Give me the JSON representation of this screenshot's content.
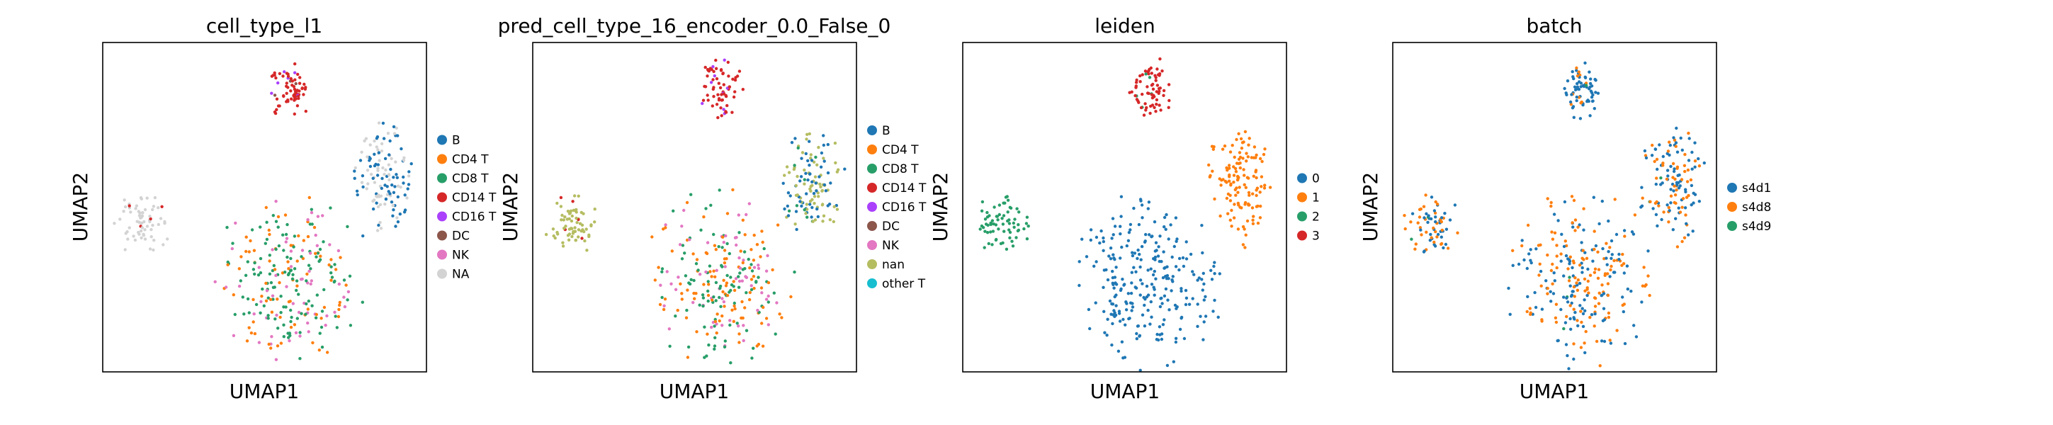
{
  "figure": {
    "panels": [
      {
        "title": "cell_type_l1",
        "xlabel": "UMAP1",
        "ylabel": "UMAP2",
        "legend": [
          {
            "label": "B",
            "color": "#1f77b4"
          },
          {
            "label": "CD4 T",
            "color": "#ff7f0e"
          },
          {
            "label": "CD8 T",
            "color": "#279e68"
          },
          {
            "label": "CD14 T",
            "color": "#d62728"
          },
          {
            "label": "CD16 T",
            "color": "#aa40fc"
          },
          {
            "label": "DC",
            "color": "#8c564b"
          },
          {
            "label": "NK",
            "color": "#e377c2"
          },
          {
            "label": "NA",
            "color": "#d3d3d3"
          }
        ]
      },
      {
        "title": "pred_cell_type_16_encoder_0.0_False_0",
        "xlabel": "UMAP1",
        "ylabel": "UMAP2",
        "legend": [
          {
            "label": "B",
            "color": "#1f77b4"
          },
          {
            "label": "CD4 T",
            "color": "#ff7f0e"
          },
          {
            "label": "CD8 T",
            "color": "#279e68"
          },
          {
            "label": "CD14 T",
            "color": "#d62728"
          },
          {
            "label": "CD16 T",
            "color": "#aa40fc"
          },
          {
            "label": "DC",
            "color": "#8c564b"
          },
          {
            "label": "NK",
            "color": "#e377c2"
          },
          {
            "label": "nan",
            "color": "#b5bd61"
          },
          {
            "label": "other T",
            "color": "#17becf"
          }
        ]
      },
      {
        "title": "leiden",
        "xlabel": "UMAP1",
        "ylabel": "UMAP2",
        "legend": [
          {
            "label": "0",
            "color": "#1f77b4"
          },
          {
            "label": "1",
            "color": "#ff7f0e"
          },
          {
            "label": "2",
            "color": "#279e68"
          },
          {
            "label": "3",
            "color": "#d62728"
          }
        ]
      },
      {
        "title": "batch",
        "xlabel": "UMAP1",
        "ylabel": "UMAP2",
        "legend": [
          {
            "label": "s4d1",
            "color": "#1f77b4"
          },
          {
            "label": "s4d8",
            "color": "#ff7f0e"
          },
          {
            "label": "s4d9",
            "color": "#279e68"
          }
        ]
      }
    ]
  },
  "chart_data": [
    {
      "type": "scatter",
      "title": "cell_type_l1",
      "xlabel": "UMAP1",
      "ylabel": "UMAP2",
      "grid": false,
      "ticks": false,
      "legend_position": "right-outside",
      "clusters": [
        {
          "region": "bottom-center",
          "cx": 0.58,
          "cy": 0.28,
          "rx": 0.24,
          "ry": 0.28,
          "mix": [
            {
              "label": "CD8 T",
              "w": 0.45
            },
            {
              "label": "CD4 T",
              "w": 0.33
            },
            {
              "label": "NK",
              "w": 0.22
            }
          ]
        },
        {
          "region": "right",
          "cx": 0.86,
          "cy": 0.57,
          "rx": 0.11,
          "ry": 0.2,
          "mix": [
            {
              "label": "B",
              "w": 0.5
            },
            {
              "label": "NA",
              "w": 0.5
            }
          ]
        },
        {
          "region": "top",
          "cx": 0.58,
          "cy": 0.86,
          "rx": 0.07,
          "ry": 0.1,
          "mix": [
            {
              "label": "CD14 T",
              "w": 0.85
            },
            {
              "label": "CD16 T",
              "w": 0.1
            },
            {
              "label": "DC",
              "w": 0.05
            }
          ]
        },
        {
          "region": "left",
          "cx": 0.12,
          "cy": 0.45,
          "rx": 0.09,
          "ry": 0.1,
          "mix": [
            {
              "label": "NA",
              "w": 0.95
            },
            {
              "label": "CD14 T",
              "w": 0.05
            }
          ]
        }
      ]
    },
    {
      "type": "scatter",
      "title": "pred_cell_type_16_encoder_0.0_False_0",
      "xlabel": "UMAP1",
      "ylabel": "UMAP2",
      "grid": false,
      "ticks": false,
      "legend_position": "right-outside",
      "clusters": [
        {
          "region": "bottom-center",
          "cx": 0.58,
          "cy": 0.28,
          "rx": 0.24,
          "ry": 0.28,
          "mix": [
            {
              "label": "CD8 T",
              "w": 0.4
            },
            {
              "label": "CD4 T",
              "w": 0.35
            },
            {
              "label": "NK",
              "w": 0.25
            }
          ]
        },
        {
          "region": "right",
          "cx": 0.86,
          "cy": 0.57,
          "rx": 0.11,
          "ry": 0.2,
          "mix": [
            {
              "label": "nan",
              "w": 0.55
            },
            {
              "label": "B",
              "w": 0.4
            },
            {
              "label": "CD8 T",
              "w": 0.05
            }
          ]
        },
        {
          "region": "top",
          "cx": 0.58,
          "cy": 0.86,
          "rx": 0.07,
          "ry": 0.1,
          "mix": [
            {
              "label": "CD14 T",
              "w": 0.88
            },
            {
              "label": "CD16 T",
              "w": 0.12
            }
          ]
        },
        {
          "region": "left",
          "cx": 0.12,
          "cy": 0.45,
          "rx": 0.09,
          "ry": 0.1,
          "mix": [
            {
              "label": "nan",
              "w": 0.93
            },
            {
              "label": "CD14 T",
              "w": 0.07
            }
          ]
        }
      ]
    },
    {
      "type": "scatter",
      "title": "leiden",
      "xlabel": "UMAP1",
      "ylabel": "UMAP2",
      "grid": false,
      "ticks": false,
      "legend_position": "right-outside",
      "clusters": [
        {
          "region": "bottom-center",
          "cx": 0.58,
          "cy": 0.28,
          "rx": 0.24,
          "ry": 0.28,
          "mix": [
            {
              "label": "0",
              "w": 1.0
            }
          ]
        },
        {
          "region": "right",
          "cx": 0.86,
          "cy": 0.57,
          "rx": 0.11,
          "ry": 0.2,
          "mix": [
            {
              "label": "1",
              "w": 1.0
            }
          ]
        },
        {
          "region": "top",
          "cx": 0.58,
          "cy": 0.86,
          "rx": 0.07,
          "ry": 0.1,
          "mix": [
            {
              "label": "3",
              "w": 0.92
            },
            {
              "label": "2",
              "w": 0.08
            }
          ]
        },
        {
          "region": "left",
          "cx": 0.12,
          "cy": 0.45,
          "rx": 0.09,
          "ry": 0.1,
          "mix": [
            {
              "label": "2",
              "w": 1.0
            }
          ]
        }
      ]
    },
    {
      "type": "scatter",
      "title": "batch",
      "xlabel": "UMAP1",
      "ylabel": "UMAP2",
      "grid": false,
      "ticks": false,
      "legend_position": "right-outside",
      "clusters": [
        {
          "region": "bottom-center",
          "cx": 0.58,
          "cy": 0.28,
          "rx": 0.24,
          "ry": 0.28,
          "mix": [
            {
              "label": "s4d1",
              "w": 0.52
            },
            {
              "label": "s4d8",
              "w": 0.46
            },
            {
              "label": "s4d9",
              "w": 0.02
            }
          ]
        },
        {
          "region": "right",
          "cx": 0.86,
          "cy": 0.57,
          "rx": 0.11,
          "ry": 0.2,
          "mix": [
            {
              "label": "s4d1",
              "w": 0.55
            },
            {
              "label": "s4d8",
              "w": 0.43
            },
            {
              "label": "s4d9",
              "w": 0.02
            }
          ]
        },
        {
          "region": "top",
          "cx": 0.58,
          "cy": 0.86,
          "rx": 0.07,
          "ry": 0.1,
          "mix": [
            {
              "label": "s4d1",
              "w": 0.85
            },
            {
              "label": "s4d8",
              "w": 0.13
            },
            {
              "label": "s4d9",
              "w": 0.02
            }
          ]
        },
        {
          "region": "left",
          "cx": 0.12,
          "cy": 0.45,
          "rx": 0.09,
          "ry": 0.1,
          "mix": [
            {
              "label": "s4d1",
              "w": 0.55
            },
            {
              "label": "s4d8",
              "w": 0.43
            },
            {
              "label": "s4d9",
              "w": 0.02
            }
          ]
        }
      ]
    }
  ]
}
